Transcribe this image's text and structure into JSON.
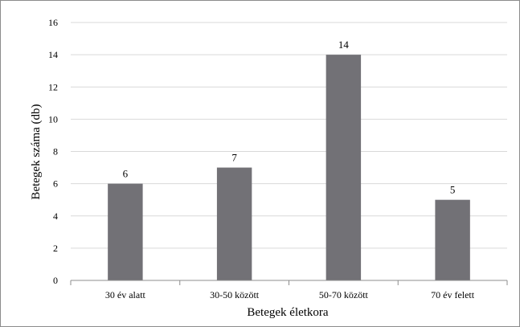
{
  "chart_data": {
    "type": "bar",
    "categories": [
      "30 év alatt",
      "30-50 között",
      "50-70 között",
      "70 év felett"
    ],
    "values": [
      6,
      7,
      14,
      5
    ],
    "data_labels": [
      "6",
      "7",
      "14",
      "5"
    ],
    "title": "",
    "xlabel": "Betegek életkora",
    "ylabel": "Betegek száma (db)",
    "ylim": [
      0,
      16
    ],
    "yticks": [
      0,
      2,
      4,
      6,
      8,
      10,
      12,
      14,
      16
    ],
    "ytick_labels": [
      "0",
      "2",
      "4",
      "6",
      "8",
      "10",
      "12",
      "14",
      "16"
    ],
    "grid": true,
    "legend": "none",
    "bar_color": "#727176"
  }
}
